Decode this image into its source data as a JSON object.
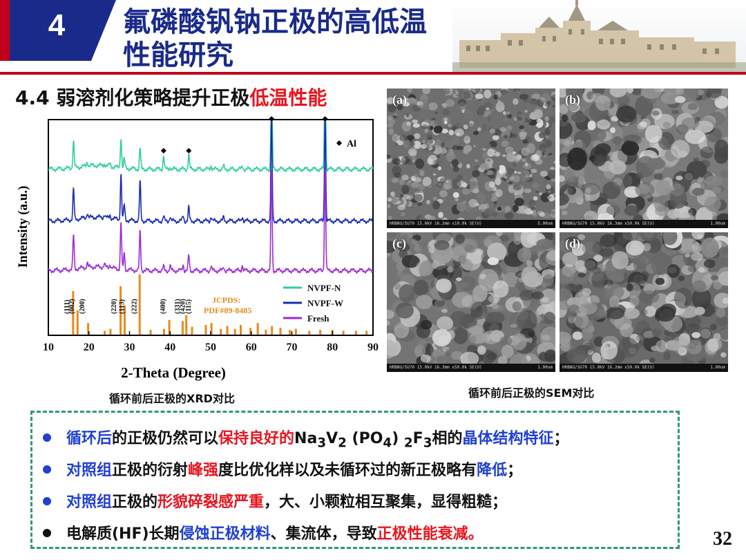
{
  "header": {
    "section_number": "4",
    "title_line1": "氟磷酸钒钠正极的高低温",
    "title_line2": "性能研究"
  },
  "subtitle": {
    "prefix": "4.4 弱溶剂化策略提升正极",
    "highlight": "低温性能"
  },
  "chart_data": {
    "type": "line",
    "xlabel": "2-Theta (Degree)",
    "ylabel": "Intensity (a.u.)",
    "xlim": [
      10,
      90
    ],
    "xticks": [
      10,
      20,
      30,
      40,
      50,
      60,
      70,
      80,
      90
    ],
    "series": [
      {
        "name": "NVPF-N",
        "color": "#2ecf9a",
        "baseline": 0.77,
        "peaks": [
          [
            16.2,
            0.35
          ],
          [
            19.6,
            0.06
          ],
          [
            23.8,
            0.03
          ],
          [
            25.2,
            0.04
          ],
          [
            27.9,
            0.4
          ],
          [
            28.7,
            0.12
          ],
          [
            32.6,
            0.28
          ],
          [
            38.4,
            0.18
          ],
          [
            40.0,
            0.03
          ],
          [
            44.6,
            0.2
          ],
          [
            50.1,
            0.05
          ],
          [
            53.2,
            0.04
          ],
          [
            57.8,
            0.04
          ],
          [
            65.0,
            1.35
          ],
          [
            78.2,
            1.4
          ]
        ]
      },
      {
        "name": "NVPF-W",
        "color": "#1a2ab0",
        "baseline": 0.53,
        "peaks": [
          [
            16.2,
            0.4
          ],
          [
            19.6,
            0.07
          ],
          [
            23.8,
            0.04
          ],
          [
            25.2,
            0.04
          ],
          [
            27.9,
            0.6
          ],
          [
            28.7,
            0.2
          ],
          [
            32.6,
            0.52
          ],
          [
            38.4,
            0.06
          ],
          [
            40.0,
            0.06
          ],
          [
            43.2,
            0.07
          ],
          [
            44.6,
            0.18
          ],
          [
            50.1,
            0.06
          ],
          [
            53.2,
            0.05
          ],
          [
            57.8,
            0.06
          ],
          [
            65.0,
            1.35
          ],
          [
            78.2,
            1.4
          ]
        ]
      },
      {
        "name": "Fresh",
        "color": "#9a2ad8",
        "baseline": 0.3,
        "peaks": [
          [
            16.2,
            0.45
          ],
          [
            19.6,
            0.06
          ],
          [
            23.8,
            0.04
          ],
          [
            25.2,
            0.05
          ],
          [
            27.9,
            0.62
          ],
          [
            28.7,
            0.22
          ],
          [
            32.6,
            0.52
          ],
          [
            38.4,
            0.05
          ],
          [
            40.0,
            0.06
          ],
          [
            43.2,
            0.08
          ],
          [
            44.6,
            0.2
          ],
          [
            50.1,
            0.05
          ],
          [
            53.2,
            0.05
          ],
          [
            57.8,
            0.07
          ],
          [
            65.0,
            1.35
          ],
          [
            78.2,
            1.4
          ]
        ]
      }
    ],
    "reference": {
      "label": "JCPDS: PDF#89-8485",
      "label_line1": "JCPDS:",
      "label_line2": "PDF#89-8485",
      "color": "#e88a1a",
      "sticks": [
        [
          16.1,
          0.45
        ],
        [
          17.2,
          0.25
        ],
        [
          19.8,
          0.12
        ],
        [
          23.9,
          0.04
        ],
        [
          25.3,
          0.06
        ],
        [
          27.8,
          0.5
        ],
        [
          28.8,
          0.3
        ],
        [
          32.5,
          0.62
        ],
        [
          35.2,
          0.05
        ],
        [
          38.5,
          0.06
        ],
        [
          39.8,
          0.15
        ],
        [
          43.1,
          0.14
        ],
        [
          44.0,
          0.2
        ],
        [
          45.4,
          0.08
        ],
        [
          48.8,
          0.1
        ],
        [
          50.2,
          0.12
        ],
        [
          52.5,
          0.06
        ],
        [
          54.1,
          0.09
        ],
        [
          56.0,
          0.06
        ],
        [
          57.4,
          0.1
        ],
        [
          59.8,
          0.07
        ],
        [
          61.6,
          0.12
        ],
        [
          63.6,
          0.05
        ],
        [
          65.1,
          0.09
        ],
        [
          67.2,
          0.07
        ],
        [
          69.5,
          0.05
        ],
        [
          71.0,
          0.06
        ],
        [
          74.3,
          0.04
        ],
        [
          77.0,
          0.05
        ],
        [
          80.0,
          0.05
        ],
        [
          82.7,
          0.04
        ],
        [
          85.8,
          0.04
        ],
        [
          88.4,
          0.04
        ]
      ]
    },
    "hkl_labels": [
      {
        "text": "(111)",
        "x": 16.1
      },
      {
        "text": "(002)",
        "x": 17.3
      },
      {
        "text": "(200)",
        "x": 19.9
      },
      {
        "text": "(220)",
        "x": 27.7
      },
      {
        "text": "(113)",
        "x": 29.7
      },
      {
        "text": "(222)",
        "x": 32.7
      },
      {
        "text": "(400)",
        "x": 39.8
      },
      {
        "text": "(331)",
        "x": 43.4
      },
      {
        "text": "(420)",
        "x": 44.6
      },
      {
        "text": "(115)",
        "x": 46.1
      }
    ],
    "al_markers": [
      38.4,
      44.6,
      65.0,
      78.2
    ],
    "al_legend": "Al",
    "legend_position": "right"
  },
  "xrd_caption": "循环前后正极的XRD对比",
  "sem": {
    "caption": "循环前后正极的SEM对比",
    "panels": [
      {
        "label": "(a)",
        "info": "HRBNU/SU70 15.0kV 16.2mm x10.0k SE(U)",
        "scale": "5.00um",
        "seed": 3,
        "tone": "#6e6e6e"
      },
      {
        "label": "(b)",
        "info": "HRBNU/SU70 15.0kV 16.3mm x50.0k SE(U)",
        "scale": "1.00um",
        "seed": 7,
        "tone": "#7a7a7a"
      },
      {
        "label": "(c)",
        "info": "HRBNU/SU70 15.0kV 16.3mm x50.0k SE(U)",
        "scale": "1.00um",
        "seed": 11,
        "tone": "#747474"
      },
      {
        "label": "(d)",
        "info": "HRBNU/SU70 15.0kV 16.2mm x50.0k SE(U)",
        "scale": "1.00um",
        "seed": 19,
        "tone": "#6a6a6a"
      }
    ]
  },
  "bullets": {
    "b1": {
      "a": "循环后",
      "b": "的正极仍然可以",
      "c": "保持良好的",
      "d": "Na",
      "d_sub": "3",
      "e": "V",
      "e_sub": "2",
      "f": " (PO",
      "f_sub": "4",
      "g": ") ",
      "g_sub": "2",
      "h": "F",
      "h_sub": "3",
      "i": "相的",
      "j": "晶体结构特征",
      "k": "；"
    },
    "b2": {
      "a": "对照组",
      "b": "正极的衍射",
      "c": "峰强",
      "d": "度比优化样以及未循环过的新正极略有",
      "e": "降低",
      "f": "；"
    },
    "b3": {
      "a": "对照组",
      "b": "正极的",
      "c": "形貌碎裂感严重",
      "d": "，大、小颗粒相互聚集，显得粗糙；"
    },
    "b4": {
      "a": "电解质(HF)长期",
      "b": "侵蚀正极材料",
      "c": "、集流体，导致",
      "d": "正极性能衰减。"
    }
  },
  "page_number": "32",
  "colors": {
    "accent_navy": "#1a2a8a",
    "accent_red": "#c0001a",
    "dash_green": "#2e9a6a",
    "bullet_blue": "#2040d0",
    "text_red": "#e8141e"
  }
}
